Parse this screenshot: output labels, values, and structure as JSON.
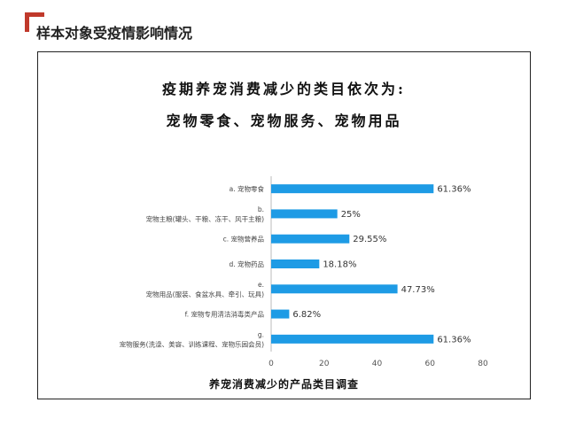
{
  "page": {
    "title": "样本对象受疫情影响情况"
  },
  "headline": {
    "line1": "疫期养宠消费减少的类目依次为:",
    "line2": "宠物零食、宠物服务、宠物用品"
  },
  "chart_data": {
    "type": "bar",
    "orientation": "horizontal",
    "title": "养宠消费减少的产品类目调查",
    "xlabel": "",
    "ylabel": "",
    "xlim": [
      0,
      80
    ],
    "xticks": [
      0,
      20,
      40,
      60,
      80
    ],
    "grid": false,
    "bar_color": "#1e9be5",
    "categories": [
      [
        "a. 宠物零食"
      ],
      [
        "b.",
        "宠物主粮(罐头、干粮、冻干、风干主粮)"
      ],
      [
        "c. 宠物营养品"
      ],
      [
        "d. 宠物药品"
      ],
      [
        "e.",
        "宠物用品(服装、食盆水具、牵引、玩具)"
      ],
      [
        "f. 宠物专用清洁消毒类产品"
      ],
      [
        "g.",
        "宠物服务(洗澡、美容、训练课程、宠物乐园会员)"
      ]
    ],
    "values": [
      61.36,
      25,
      29.55,
      18.18,
      47.73,
      6.82,
      61.36
    ],
    "value_labels": [
      "61.36%",
      "25%",
      "29.55%",
      "18.18%",
      "47.73%",
      "6.82%",
      "61.36%"
    ]
  }
}
